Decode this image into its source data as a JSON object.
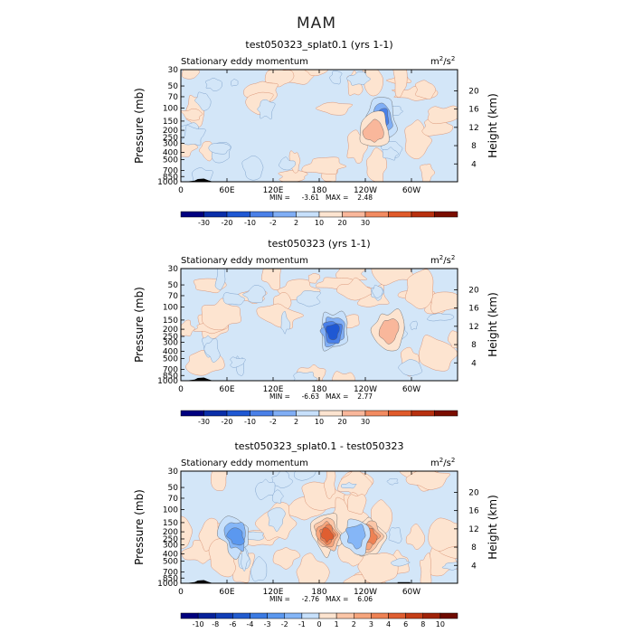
{
  "figure_title": "MAM",
  "colors": {
    "light_blue_fill": "#d3e6f8",
    "light_red_fill": "#fde4d0",
    "terrain": "#000000",
    "frame": "#000000"
  },
  "colorbar_colors_12": [
    "#00007f",
    "#0a2fa9",
    "#1f58d3",
    "#4a80e8",
    "#80aef5",
    "#c7e0fb",
    "#fde4d0",
    "#f9b79b",
    "#f28b61",
    "#e05a2a",
    "#b8300f",
    "#7a0d00"
  ],
  "colorbar_colors_16": [
    "#00007f",
    "#07229b",
    "#113eb7",
    "#225ccf",
    "#3b7be3",
    "#5b98ef",
    "#85b6f7",
    "#c7e0fb",
    "#fde4d0",
    "#fbc6a7",
    "#f6a57d",
    "#ee8254",
    "#df5e31",
    "#c53e17",
    "#a02208",
    "#6f0b00"
  ],
  "chart_data": [
    {
      "type": "heatmap",
      "panel": 1,
      "title": "test050323_splat0.1 (yrs 1-1)",
      "left_string": "Stationary eddy momentum",
      "units_base": "m",
      "units_sup1": "2",
      "units_mid": "/s",
      "units_sup2": "2",
      "xlabel": "",
      "ylabel": "Pressure (mb)",
      "y2label": "Height (km)",
      "x_range": [
        0,
        360
      ],
      "x_ticks": [
        "0",
        "60E",
        "120E",
        "180",
        "120W",
        "60W"
      ],
      "y_ticks": [
        "30",
        "50",
        "70",
        "100",
        "150",
        "200",
        "250",
        "300",
        "400",
        "500",
        "700",
        "850",
        "1000"
      ],
      "height_ticks": [
        "20",
        "16",
        "12",
        "8",
        "4"
      ],
      "min_label": "MIN =",
      "min_value": "-3.61",
      "max_label": "MAX =",
      "max_value": "2.48",
      "contour_levels": [
        "-30",
        "-20",
        "-10",
        "-2",
        "2",
        "10",
        "20",
        "30"
      ],
      "features": [
        {
          "lon": 262,
          "p": 140,
          "value": -3.61
        },
        {
          "lon": 252,
          "p": 210,
          "value": 2.48
        }
      ]
    },
    {
      "type": "heatmap",
      "panel": 2,
      "title": "test050323 (yrs 1-1)",
      "left_string": "Stationary eddy momentum",
      "units_base": "m",
      "units_sup1": "2",
      "units_mid": "/s",
      "units_sup2": "2",
      "xlabel": "",
      "ylabel": "Pressure (mb)",
      "y2label": "Height (km)",
      "x_range": [
        0,
        360
      ],
      "x_ticks": [
        "0",
        "60E",
        "120E",
        "180",
        "120W",
        "60W"
      ],
      "y_ticks": [
        "30",
        "50",
        "70",
        "100",
        "150",
        "200",
        "250",
        "300",
        "400",
        "500",
        "700",
        "850",
        "1000"
      ],
      "height_ticks": [
        "20",
        "16",
        "12",
        "8",
        "4"
      ],
      "min_label": "MIN =",
      "min_value": "-6.63",
      "max_label": "MAX =",
      "max_value": "2.77",
      "contour_levels": [
        "-30",
        "-20",
        "-10",
        "-2",
        "2",
        "10",
        "20",
        "30"
      ],
      "features": [
        {
          "lon": 198,
          "p": 210,
          "value": -6.63
        },
        {
          "lon": 270,
          "p": 200,
          "value": 2.77
        }
      ]
    },
    {
      "type": "heatmap",
      "panel": 3,
      "title": "test050323_splat0.1 - test050323",
      "left_string": "Stationary eddy momentum",
      "units_base": "m",
      "units_sup1": "2",
      "units_mid": "/s",
      "units_sup2": "2",
      "xlabel": "",
      "ylabel": "Pressure (mb)",
      "y2label": "Height (km)",
      "x_range": [
        0,
        360
      ],
      "x_ticks": [
        "0",
        "60E",
        "120E",
        "180",
        "120W",
        "60W"
      ],
      "y_ticks": [
        "30",
        "50",
        "70",
        "100",
        "150",
        "200",
        "250",
        "300",
        "400",
        "500",
        "700",
        "850",
        "1000"
      ],
      "height_ticks": [
        "20",
        "16",
        "12",
        "8",
        "4"
      ],
      "min_label": "MIN =",
      "min_value": "-2.76",
      "max_label": "MAX =",
      "max_value": "6.06",
      "contour_levels": [
        "-10",
        "-8",
        "-6",
        "-4",
        "-3",
        "-2",
        "-1",
        "0",
        "1",
        "2",
        "3",
        "4",
        "6",
        "8",
        "10"
      ],
      "features": [
        {
          "lon": 190,
          "p": 220,
          "value": 6.06
        },
        {
          "lon": 245,
          "p": 230,
          "value": 4.0
        },
        {
          "lon": 72,
          "p": 230,
          "value": -2.76
        },
        {
          "lon": 228,
          "p": 230,
          "value": -2.2
        }
      ]
    }
  ]
}
